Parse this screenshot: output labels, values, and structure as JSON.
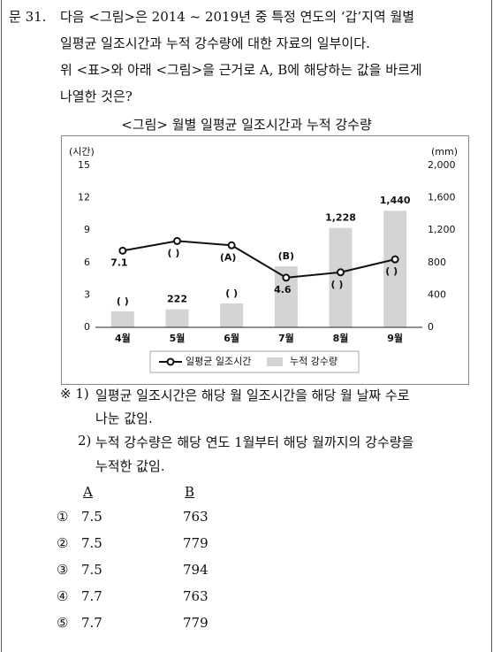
{
  "question": {
    "number": "문 31.",
    "lines": [
      "다음 <그림>은 2014 ~ 2019년 중 특정 연도의 ‘갑’지역 월별",
      "일평균 일조시간과 누적 강수량에 대한 자료의 일부이다.",
      "위 <표>와 아래 <그림>을 근거로 A, B에 해당하는 값을 바르게",
      "나열한 것은?"
    ]
  },
  "chart_data": {
    "type": "bar_line",
    "title": "<그림> 월별 일평균 일조시간과 누적 강수량",
    "y_label": "(시간)",
    "y2_label": "(mm)",
    "categories": [
      "4월",
      "5월",
      "6월",
      "7월",
      "8월",
      "9월"
    ],
    "series": [
      {
        "name": "일평균 일조시간",
        "type": "line",
        "axis": "y",
        "color": "#111111",
        "values": [
          7.1,
          8.0,
          7.6,
          4.6,
          5.1,
          6.3
        ],
        "value_labels": [
          "7.1",
          "( )",
          "(A)",
          "4.6",
          "( )",
          "( )"
        ]
      },
      {
        "name": "누적 강수량",
        "type": "bar",
        "axis": "y2",
        "color": "#d4d4d4",
        "values": [
          197,
          222,
          295,
          754,
          1228,
          1440
        ],
        "value_labels": [
          "( )",
          "222",
          "( )",
          "(B)",
          "1,228",
          "1,440"
        ]
      }
    ],
    "ylim": [
      0,
      15
    ],
    "yticks": [
      0,
      3,
      6,
      9,
      12,
      15
    ],
    "y2lim": [
      0,
      2000
    ],
    "y2ticks": [
      0,
      400,
      800,
      {
        "value": 1200,
        "label": "1,200"
      },
      {
        "value": 1600,
        "label": "1,600"
      },
      {
        "value": 2000,
        "label": "2,000"
      }
    ],
    "grid": false,
    "legend": "bottom"
  },
  "notes": [
    {
      "mark": "※ 1)",
      "lines": [
        "일평균 일조시간은 해당 월 일조시간을 해당 월 날짜 수로",
        "나눈 값임."
      ]
    },
    {
      "mark": "2)",
      "lines": [
        "누적 강수량은 해당 연도 1월부터 해당 월까지의 강수량을",
        "누적한 값임."
      ]
    }
  ],
  "options": {
    "header": [
      "A",
      "B"
    ],
    "rows": [
      [
        "①",
        "7.5",
        "763"
      ],
      [
        "②",
        "7.5",
        "779"
      ],
      [
        "③",
        "7.5",
        "794"
      ],
      [
        "④",
        "7.7",
        "763"
      ],
      [
        "⑤",
        "7.7",
        "779"
      ]
    ]
  }
}
